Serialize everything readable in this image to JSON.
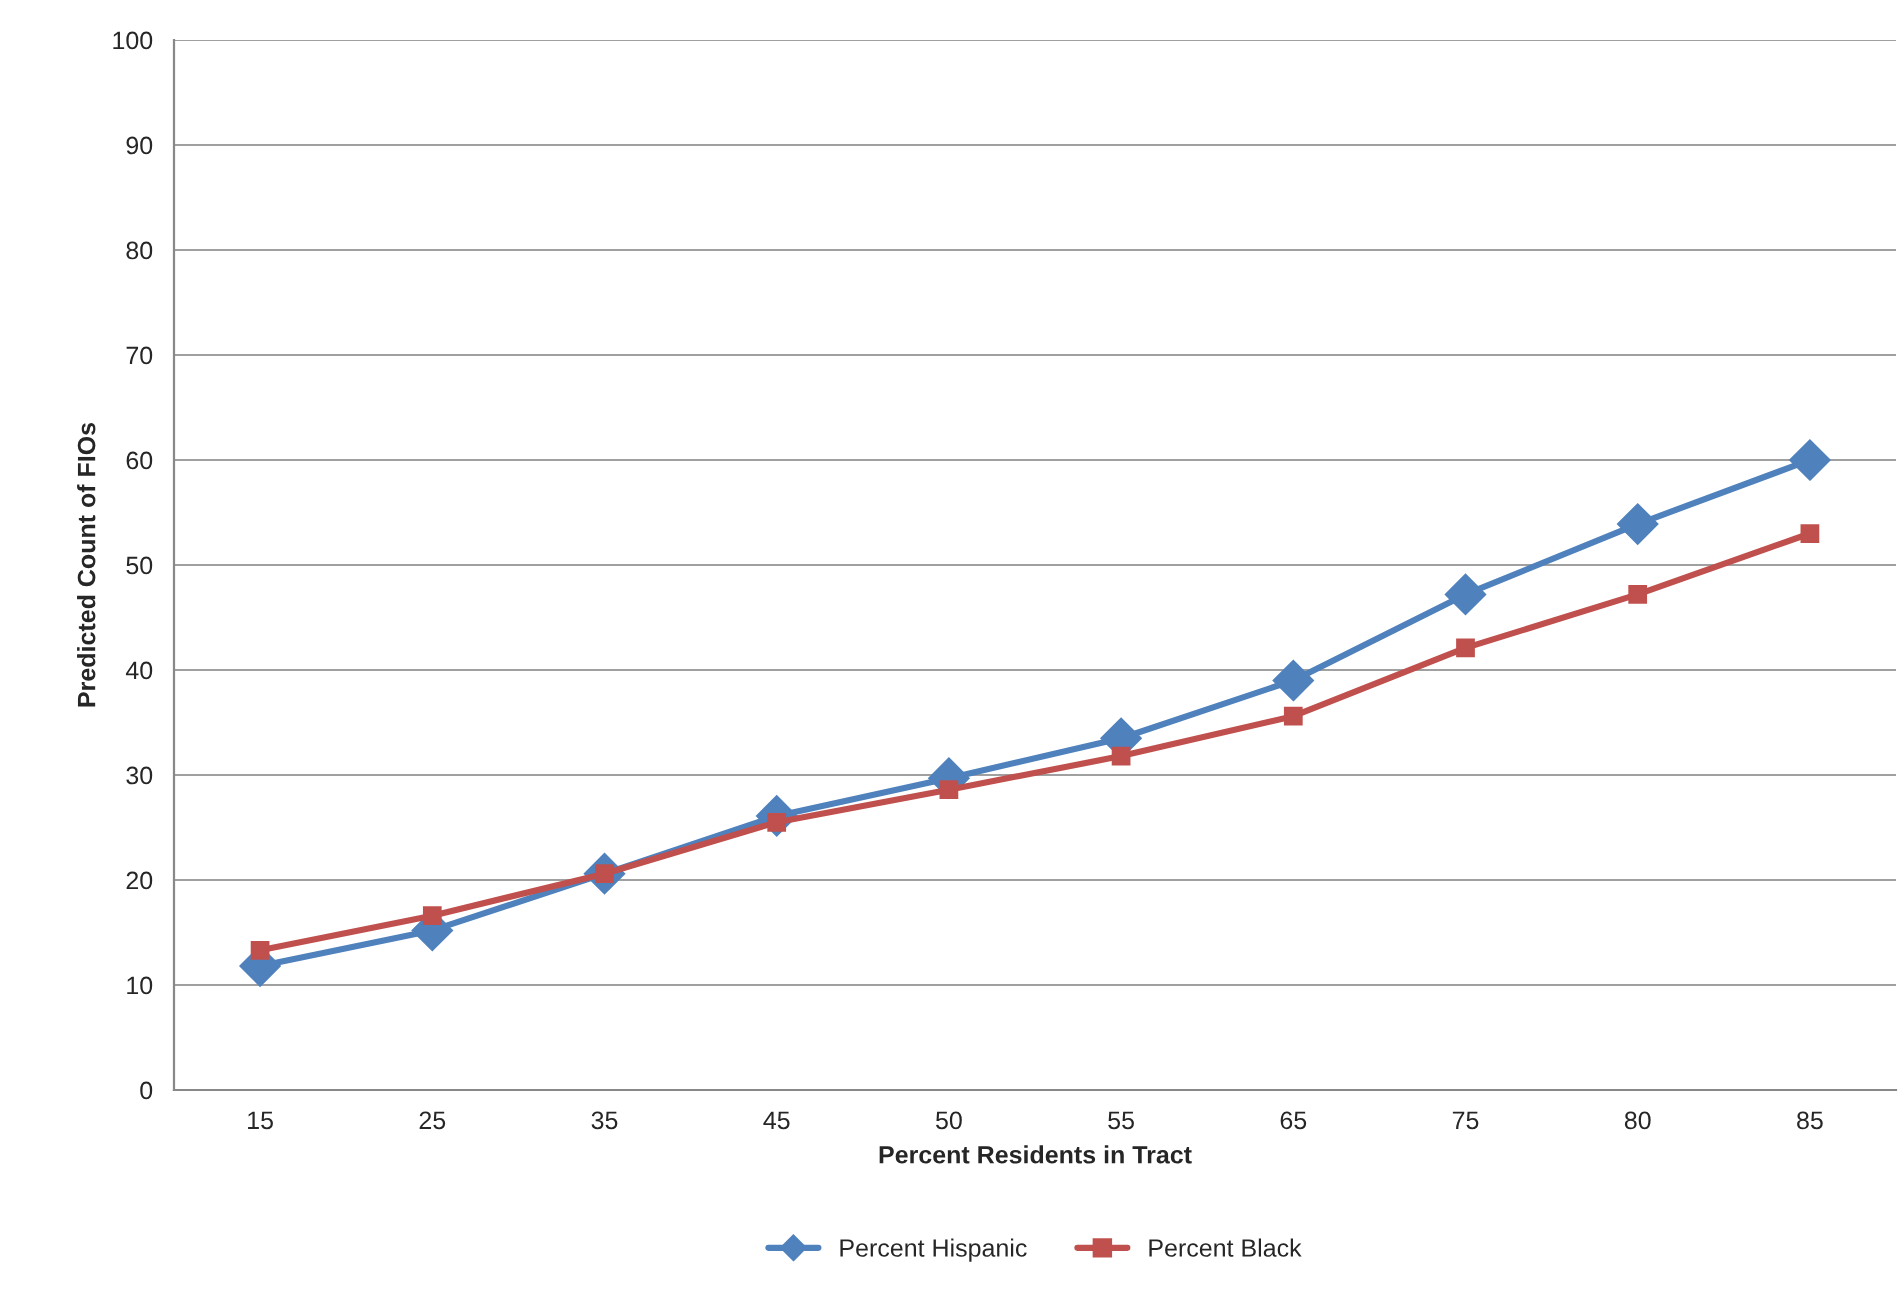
{
  "chart_data": {
    "type": "line",
    "xlabel": "Percent Residents in Tract",
    "ylabel": "Predicted Count of FIOs",
    "categories": [
      "15",
      "25",
      "35",
      "45",
      "50",
      "55",
      "65",
      "75",
      "80",
      "85"
    ],
    "series": [
      {
        "name": "Percent Hispanic",
        "color": "#4f81bd",
        "marker": "diamond",
        "values": [
          11.8,
          15.2,
          20.6,
          26.1,
          29.7,
          33.5,
          39.0,
          47.2,
          53.9,
          60.0
        ]
      },
      {
        "name": "Percent Black",
        "color": "#c0504d",
        "marker": "square",
        "values": [
          13.3,
          16.6,
          20.6,
          25.5,
          28.6,
          31.8,
          35.6,
          42.1,
          47.2,
          53.0
        ]
      }
    ],
    "ylim": [
      0,
      100
    ],
    "yticks": [
      0,
      10,
      20,
      30,
      40,
      50,
      60,
      70,
      80,
      90,
      100
    ],
    "grid": "y",
    "legend": "bottom",
    "line_style": "solid"
  }
}
